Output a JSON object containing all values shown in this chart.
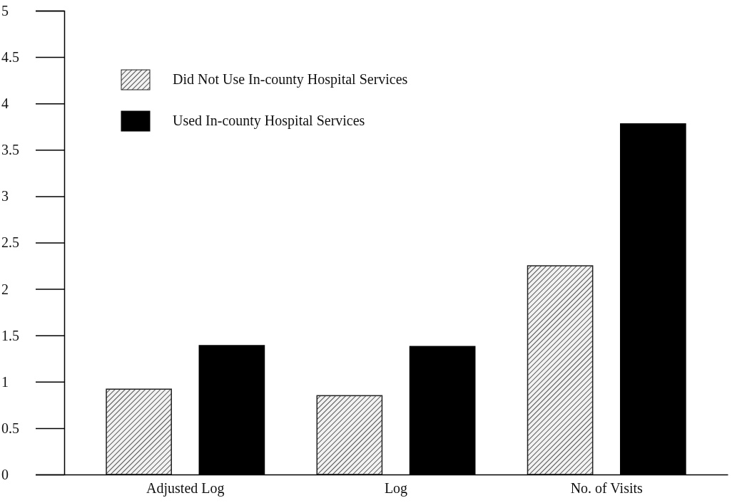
{
  "chart_data": {
    "type": "bar",
    "categories": [
      "Adjusted Log",
      "Log",
      "No. of Visits"
    ],
    "series": [
      {
        "name": "Did Not Use In-county Hospital Services",
        "color": "#222222",
        "values": [
          0.92,
          0.85,
          2.25
        ]
      },
      {
        "name": "Used In-county Hospital Services",
        "color": "#000000",
        "values": [
          1.39,
          1.38,
          3.78
        ]
      }
    ],
    "ylim": [
      0,
      5
    ],
    "yticks": [
      0,
      0.5,
      1,
      1.5,
      2,
      2.5,
      3,
      3.5,
      4,
      4.5,
      5
    ],
    "grid": false,
    "legend": "top left"
  }
}
